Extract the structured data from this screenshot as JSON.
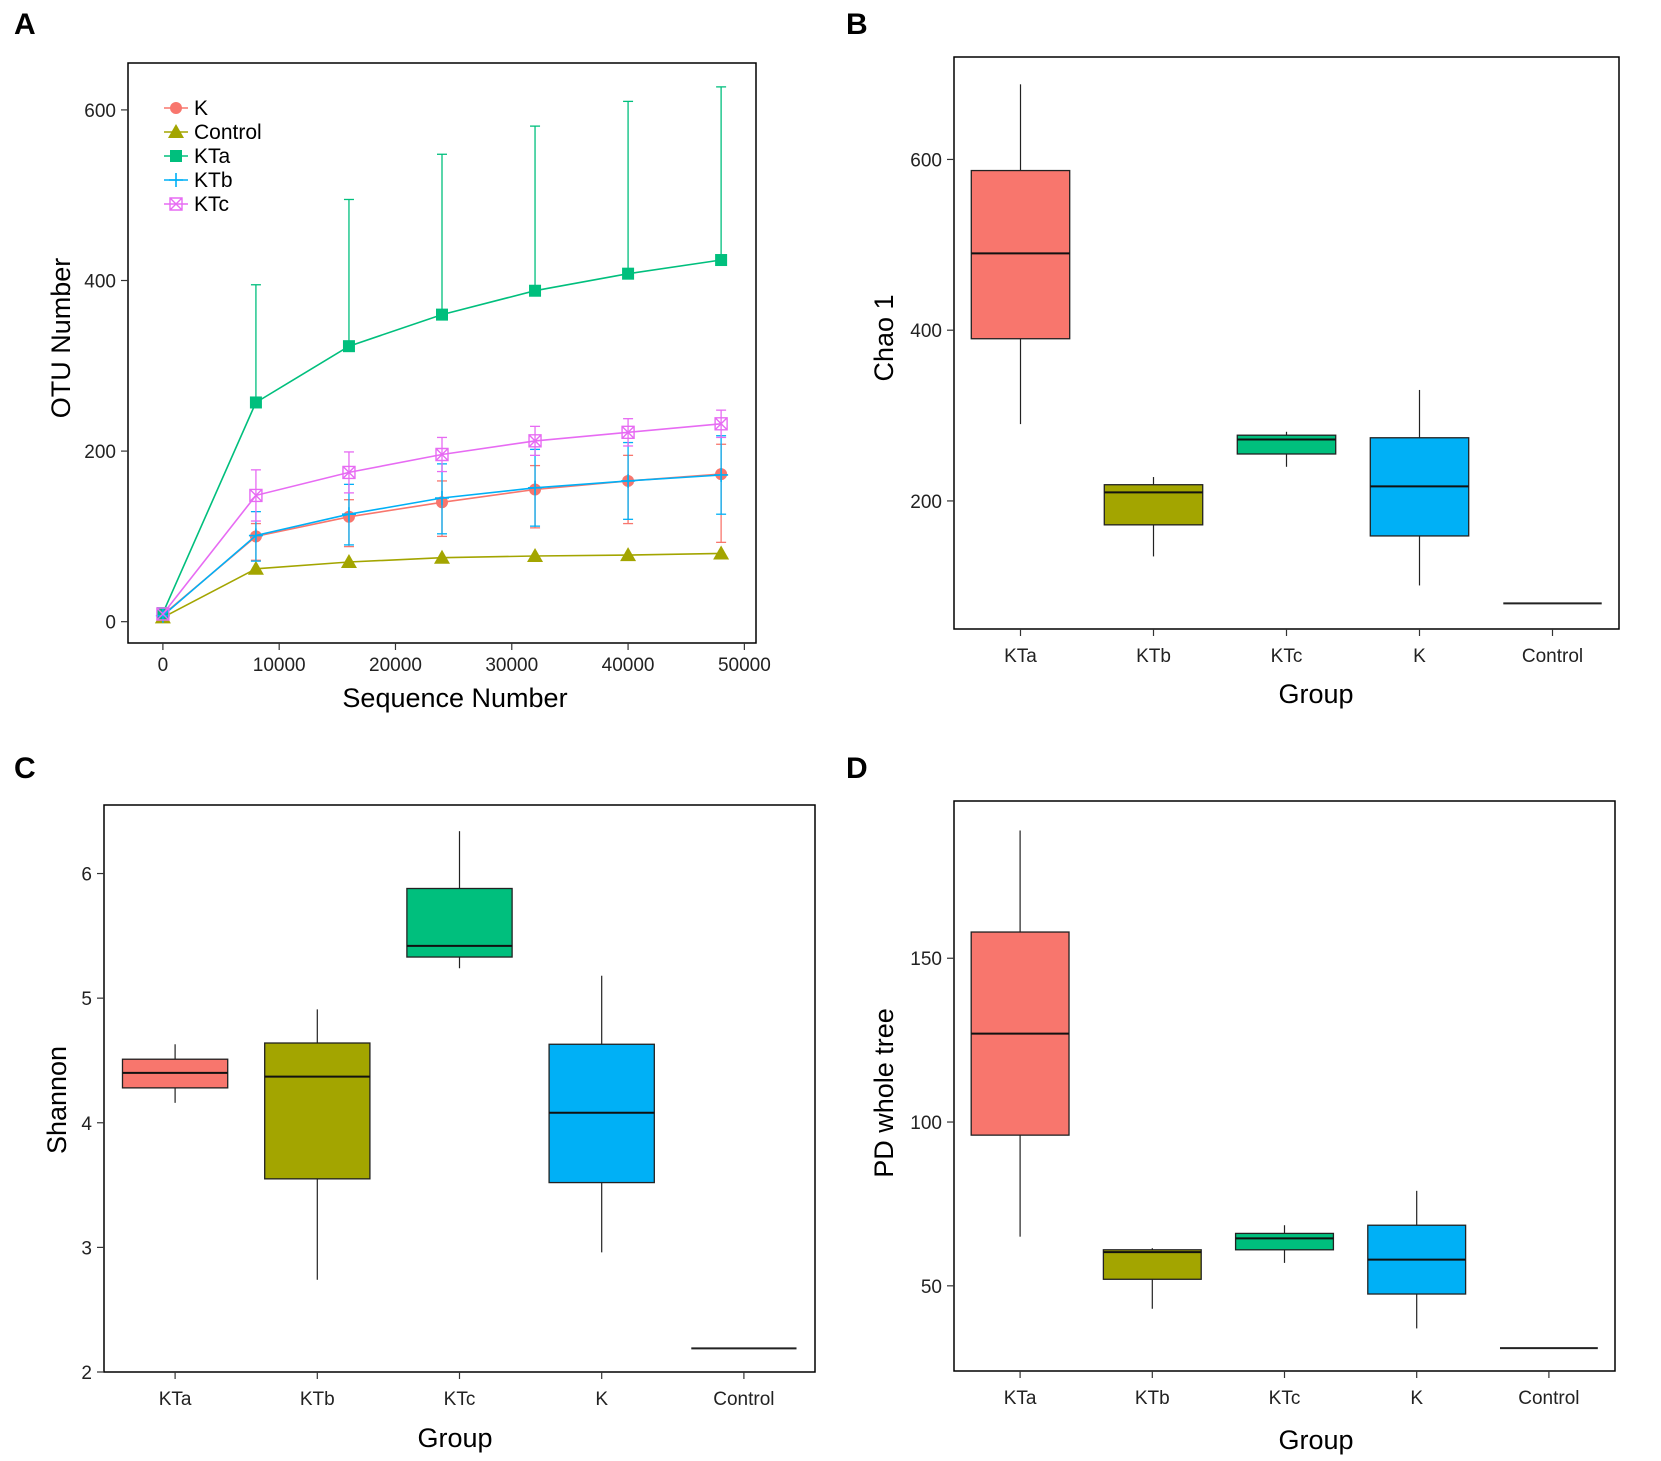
{
  "panels": {
    "a": {
      "letter": "A"
    },
    "b": {
      "letter": "B"
    },
    "c": {
      "letter": "C"
    },
    "d": {
      "letter": "D"
    }
  },
  "colors": {
    "KTa": "#F8766D",
    "KTb": "#A3A500",
    "KTc": "#00BF7D",
    "K": "#00B0F6",
    "line_K": "#F8766D",
    "line_Control": "#A3A500",
    "line_KTa": "#00BF7D",
    "line_KTb": "#00B0F6",
    "line_KTc": "#E76BF3"
  },
  "chart_data": [
    {
      "panel": "A",
      "type": "line",
      "xlabel": "Sequence Number",
      "ylabel": "OTU Number",
      "x": [
        0,
        8000,
        16000,
        24000,
        32000,
        40000,
        48000
      ],
      "xticks": [
        0,
        10000,
        20000,
        30000,
        40000,
        50000
      ],
      "yticks": [
        0,
        200,
        400,
        600
      ],
      "xlim": [
        -3000,
        51000
      ],
      "ylim": [
        -25,
        655
      ],
      "legend_position": "top-left",
      "series": [
        {
          "name": "K",
          "marker": "circle",
          "color": "#F8766D",
          "values": [
            8,
            100,
            123,
            140,
            155,
            165,
            173
          ],
          "err_low": [
            0,
            28,
            35,
            40,
            45,
            50,
            80
          ],
          "err_high": [
            0,
            15,
            20,
            25,
            28,
            30,
            35
          ]
        },
        {
          "name": "Control",
          "marker": "triangle",
          "color": "#A3A500",
          "values": [
            5,
            62,
            70,
            75,
            77,
            78,
            80
          ],
          "err_low": [
            0,
            0,
            0,
            0,
            0,
            0,
            0
          ],
          "err_high": [
            0,
            0,
            0,
            0,
            0,
            0,
            0
          ]
        },
        {
          "name": "KTa",
          "marker": "square",
          "color": "#00BF7D",
          "values": [
            10,
            257,
            323,
            360,
            388,
            408,
            424
          ],
          "err_low": [
            0,
            0,
            0,
            0,
            0,
            0,
            0
          ],
          "err_high": [
            0,
            138,
            172,
            188,
            193,
            202,
            203
          ]
        },
        {
          "name": "KTb",
          "marker": "plus",
          "color": "#00B0F6",
          "values": [
            7,
            101,
            126,
            145,
            157,
            165,
            172
          ],
          "err_low": [
            0,
            30,
            36,
            42,
            45,
            45,
            46
          ],
          "err_high": [
            0,
            28,
            35,
            40,
            45,
            45,
            46
          ]
        },
        {
          "name": "KTc",
          "marker": "boxcross",
          "color": "#E76BF3",
          "values": [
            9,
            148,
            175,
            196,
            212,
            222,
            232
          ],
          "err_low": [
            0,
            30,
            24,
            20,
            17,
            16,
            16
          ],
          "err_high": [
            0,
            30,
            24,
            20,
            17,
            16,
            16
          ]
        }
      ]
    },
    {
      "panel": "B",
      "type": "box",
      "xlabel": "Group",
      "ylabel": "Chao 1",
      "categories": [
        "KTa",
        "KTb",
        "KTc",
        "K",
        "Control"
      ],
      "yticks": [
        200,
        400,
        600
      ],
      "ylim": [
        50,
        720
      ],
      "boxes": [
        {
          "group": "KTa",
          "min": 290,
          "q1": 390,
          "median": 490,
          "q3": 587,
          "max": 688
        },
        {
          "group": "KTb",
          "min": 135,
          "q1": 172,
          "median": 210,
          "q3": 219,
          "max": 228
        },
        {
          "group": "KTc",
          "min": 240,
          "q1": 255,
          "median": 272,
          "q3": 277,
          "max": 281
        },
        {
          "group": "K",
          "min": 101,
          "q1": 159,
          "median": 217,
          "q3": 274,
          "max": 330
        },
        {
          "group": "Control",
          "min": 80,
          "q1": 80,
          "median": 80,
          "q3": 80,
          "max": 80
        }
      ]
    },
    {
      "panel": "C",
      "type": "box",
      "xlabel": "Group",
      "ylabel": "Shannon",
      "categories": [
        "KTa",
        "KTb",
        "KTc",
        "K",
        "Control"
      ],
      "yticks": [
        2,
        3,
        4,
        5,
        6
      ],
      "ylim": [
        2.0,
        6.55
      ],
      "boxes": [
        {
          "group": "KTa",
          "min": 4.16,
          "q1": 4.28,
          "median": 4.4,
          "q3": 4.51,
          "max": 4.63
        },
        {
          "group": "KTb",
          "min": 2.74,
          "q1": 3.55,
          "median": 4.37,
          "q3": 4.64,
          "max": 4.91
        },
        {
          "group": "KTc",
          "min": 5.24,
          "q1": 5.33,
          "median": 5.42,
          "q3": 5.88,
          "max": 6.34
        },
        {
          "group": "K",
          "min": 2.96,
          "q1": 3.52,
          "median": 4.08,
          "q3": 4.63,
          "max": 5.18
        },
        {
          "group": "Control",
          "min": 2.19,
          "q1": 2.19,
          "median": 2.19,
          "q3": 2.19,
          "max": 2.19
        }
      ]
    },
    {
      "panel": "D",
      "type": "box",
      "xlabel": "Group",
      "ylabel": "PD whole tree",
      "categories": [
        "KTa",
        "KTb",
        "KTc",
        "K",
        "Control"
      ],
      "yticks": [
        50,
        100,
        150
      ],
      "ylim": [
        24,
        198
      ],
      "boxes": [
        {
          "group": "KTa",
          "min": 65,
          "q1": 96,
          "median": 127,
          "q3": 158,
          "max": 189
        },
        {
          "group": "KTb",
          "min": 43,
          "q1": 52,
          "median": 60.3,
          "q3": 61,
          "max": 61.5
        },
        {
          "group": "KTc",
          "min": 57,
          "q1": 61,
          "median": 64.5,
          "q3": 66,
          "max": 68.5
        },
        {
          "group": "K",
          "min": 37,
          "q1": 47.5,
          "median": 58,
          "q3": 68.5,
          "max": 79
        },
        {
          "group": "Control",
          "min": 31,
          "q1": 31,
          "median": 31,
          "q3": 31,
          "max": 31
        }
      ]
    }
  ]
}
